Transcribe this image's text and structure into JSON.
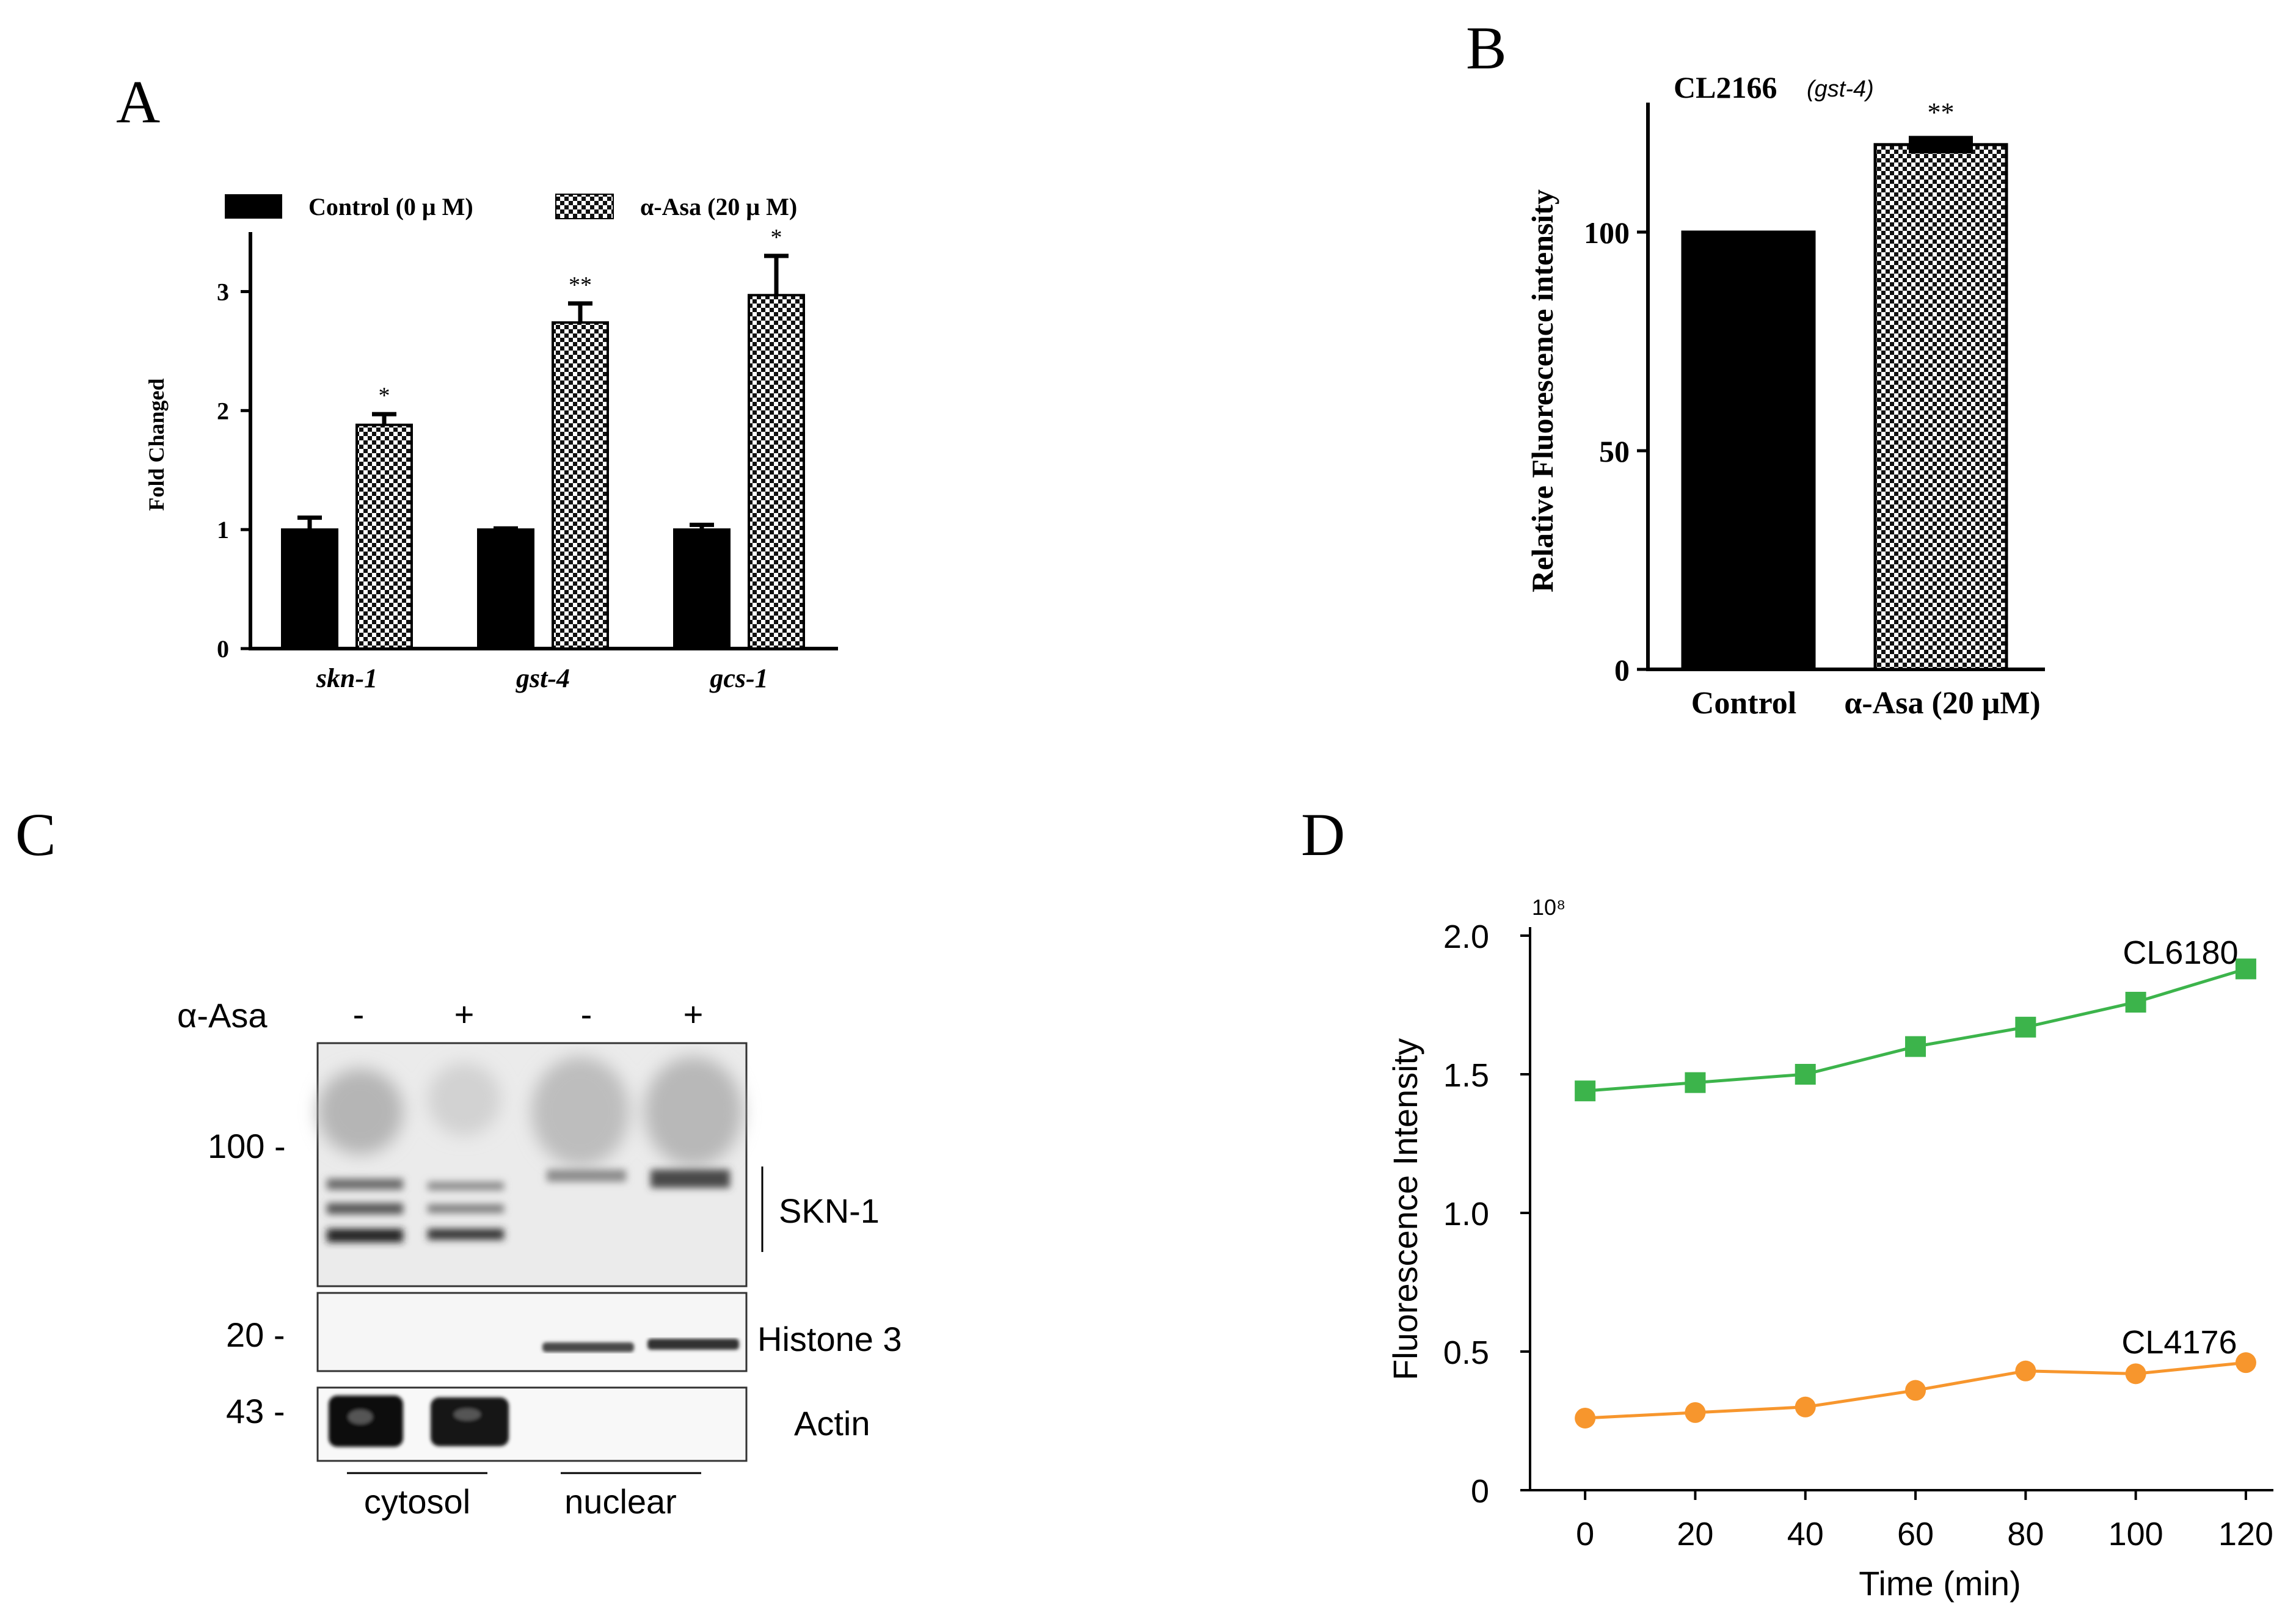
{
  "panel_labels": {
    "a": "A",
    "b": "B",
    "c": "C",
    "d": "D"
  },
  "chart_data": [
    {
      "panel": "A",
      "type": "bar",
      "title": "",
      "xlabel": "",
      "ylabel": "Fold Changed",
      "ylim": [
        0,
        3.5
      ],
      "yticks": [
        "0",
        "1",
        "2",
        "3"
      ],
      "categories": [
        "skn-1",
        "gst-4",
        "gcs-1"
      ],
      "legend": [
        "Control (0 μ M)",
        "α-Asa (20 μ M)"
      ],
      "series": [
        {
          "name": "Control (0 μ M)",
          "values": [
            1.0,
            1.0,
            1.0
          ],
          "errors": [
            0.1,
            0.01,
            0.04
          ],
          "sig": [
            "",
            "",
            ""
          ],
          "color": "#000000"
        },
        {
          "name": "α-Asa (20 μ M)",
          "values": [
            1.88,
            2.74,
            2.97
          ],
          "errors": [
            0.09,
            0.16,
            0.33
          ],
          "sig": [
            "*",
            "**",
            "*"
          ],
          "color": "#000000"
        }
      ]
    },
    {
      "panel": "B",
      "type": "bar",
      "title": "CL2166",
      "title_italic": "(gst-4)",
      "xlabel": "",
      "ylabel": "Relative Fluorescence intensity",
      "ylim": [
        0,
        125
      ],
      "yticks": [
        "0",
        "50",
        "100"
      ],
      "categories": [
        "Control",
        "α-Asa (20 μM)"
      ],
      "values": [
        100,
        120
      ],
      "errors": [
        0,
        2
      ],
      "sig": [
        "",
        "**"
      ]
    },
    {
      "panel": "D",
      "type": "line",
      "title": "",
      "xlabel": "Time (min)",
      "ylabel": "Fluorescence Intensity",
      "y_multiplier": "10⁸",
      "xlim": [
        -10,
        125
      ],
      "ylim": [
        0,
        2.0
      ],
      "xticks": [
        "0",
        "20",
        "40",
        "60",
        "80",
        "100",
        "120"
      ],
      "yticks": [
        "0",
        "0.5",
        "1.0",
        "1.5",
        "2.0"
      ],
      "x": [
        0,
        20,
        40,
        60,
        80,
        100,
        120
      ],
      "series": [
        {
          "name": "CL6180",
          "values": [
            1.44,
            1.47,
            1.5,
            1.6,
            1.67,
            1.76,
            1.88
          ],
          "color": "#3cb44b",
          "marker": "square"
        },
        {
          "name": "CL4176",
          "values": [
            0.26,
            0.28,
            0.3,
            0.36,
            0.43,
            0.42,
            0.46
          ],
          "color": "#f7962d",
          "marker": "circle"
        }
      ]
    }
  ],
  "blot": {
    "treatment_label": "α-Asa",
    "lane_signs": [
      "-",
      "+",
      "-",
      "+"
    ],
    "markers": [
      "100 -",
      "20 -",
      "43 -"
    ],
    "bands": [
      "SKN-1",
      "Histone 3",
      "Actin"
    ],
    "fractions": [
      "cytosol",
      "nuclear"
    ]
  }
}
